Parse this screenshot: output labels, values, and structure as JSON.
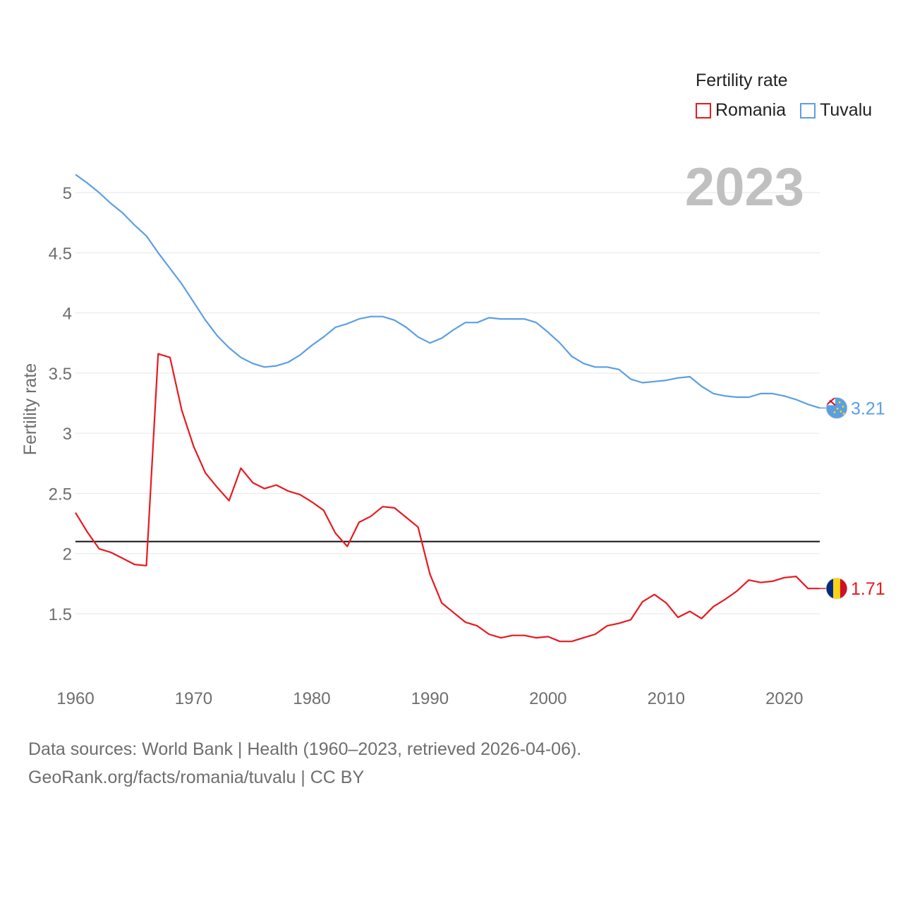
{
  "legend": {
    "title": "Fertility rate",
    "items": [
      {
        "label": "Romania",
        "color": "#e8191f"
      },
      {
        "label": "Tuvalu",
        "color": "#5b9fe3"
      }
    ]
  },
  "year_label": "2023",
  "footer": {
    "line1": "Data sources: World Bank | Health (1960–2023, retrieved 2026-04-06).",
    "line2": "GeoRank.org/facts/romania/tuvalu | CC BY"
  },
  "chart_data": {
    "type": "line",
    "ylabel": "Fertility rate",
    "xlabel": "",
    "xlim": [
      1960,
      2023
    ],
    "ylim": [
      0.9,
      5.2
    ],
    "x_ticks": [
      1960,
      1970,
      1980,
      1990,
      2000,
      2010,
      2020
    ],
    "y_ticks": [
      1.5,
      2,
      2.5,
      3,
      3.5,
      4,
      4.5,
      5
    ],
    "y_tick_labels": [
      "1.5",
      "2",
      "2.5",
      "3",
      "3.5",
      "4",
      "4.5",
      "5"
    ],
    "reference_line": {
      "y": 2.1,
      "color": "#111111"
    },
    "x": [
      1960,
      1961,
      1962,
      1963,
      1964,
      1965,
      1966,
      1967,
      1968,
      1969,
      1970,
      1971,
      1972,
      1973,
      1974,
      1975,
      1976,
      1977,
      1978,
      1979,
      1980,
      1981,
      1982,
      1983,
      1984,
      1985,
      1986,
      1987,
      1988,
      1989,
      1990,
      1991,
      1992,
      1993,
      1994,
      1995,
      1996,
      1997,
      1998,
      1999,
      2000,
      2001,
      2002,
      2003,
      2004,
      2005,
      2006,
      2007,
      2008,
      2009,
      2010,
      2011,
      2012,
      2013,
      2014,
      2015,
      2016,
      2017,
      2018,
      2019,
      2020,
      2021,
      2022,
      2023
    ],
    "series": [
      {
        "name": "Tuvalu",
        "color": "#5b9fe3",
        "end_label": "3.21",
        "values": [
          5.15,
          5.08,
          5.0,
          4.91,
          4.83,
          4.73,
          4.64,
          4.5,
          4.37,
          4.24,
          4.09,
          3.94,
          3.81,
          3.71,
          3.63,
          3.58,
          3.55,
          3.56,
          3.59,
          3.65,
          3.73,
          3.8,
          3.88,
          3.91,
          3.95,
          3.97,
          3.97,
          3.94,
          3.88,
          3.8,
          3.75,
          3.79,
          3.86,
          3.92,
          3.92,
          3.96,
          3.95,
          3.95,
          3.95,
          3.92,
          3.84,
          3.75,
          3.64,
          3.58,
          3.55,
          3.55,
          3.53,
          3.45,
          3.42,
          3.43,
          3.44,
          3.46,
          3.47,
          3.39,
          3.33,
          3.31,
          3.3,
          3.3,
          3.33,
          3.33,
          3.31,
          3.28,
          3.24,
          3.21
        ]
      },
      {
        "name": "Romania",
        "color": "#e8191f",
        "end_label": "1.71",
        "values": [
          2.34,
          2.18,
          2.04,
          2.01,
          1.96,
          1.91,
          1.9,
          3.66,
          3.63,
          3.19,
          2.89,
          2.67,
          2.55,
          2.44,
          2.71,
          2.59,
          2.54,
          2.57,
          2.52,
          2.49,
          2.43,
          2.36,
          2.17,
          2.06,
          2.26,
          2.31,
          2.39,
          2.38,
          2.3,
          2.22,
          1.83,
          1.59,
          1.51,
          1.43,
          1.4,
          1.33,
          1.3,
          1.32,
          1.32,
          1.3,
          1.31,
          1.27,
          1.27,
          1.3,
          1.33,
          1.4,
          1.42,
          1.45,
          1.6,
          1.66,
          1.59,
          1.47,
          1.52,
          1.46,
          1.56,
          1.62,
          1.69,
          1.78,
          1.76,
          1.77,
          1.8,
          1.81,
          1.71,
          1.71
        ]
      }
    ]
  }
}
